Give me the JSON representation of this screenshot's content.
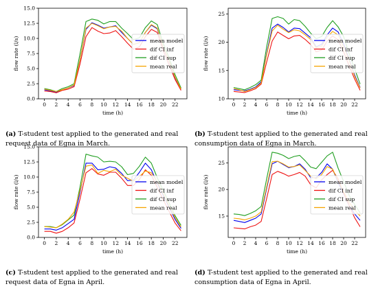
{
  "figure": {
    "captions": [
      {
        "tag": "(a)",
        "text": "T-student test applied to the generated and real request data of Egna in March."
      },
      {
        "tag": "(b)",
        "text": "T-student test applied to the generated and real consumption data of Egna in March."
      },
      {
        "tag": "(c)",
        "text": "T-student test applied to the generated and real request data of Egna in April."
      },
      {
        "tag": "(d)",
        "text": "T-student test applied to the generated and real consumption data of Egna in April."
      }
    ]
  },
  "colors": {
    "mean model": "#0000ee",
    "dif CI inf": "#ee1111",
    "dif CI sup": "#1f9e1f",
    "mean real": "#f5a300"
  },
  "chart_data": [
    {
      "type": "line",
      "xlabel": "time (h)",
      "ylabel": "flow rate (l/s)",
      "x": [
        0,
        1,
        2,
        3,
        4,
        5,
        6,
        7,
        8,
        9,
        10,
        11,
        12,
        13,
        14,
        15,
        16,
        17,
        18,
        19,
        20,
        21,
        22,
        23
      ],
      "xticks": [
        0,
        2,
        4,
        6,
        8,
        10,
        12,
        14,
        16,
        18,
        20,
        22
      ],
      "ylim": [
        0,
        15
      ],
      "yticks": [
        0,
        2.5,
        5.0,
        7.5,
        10.0,
        12.5,
        15.0
      ],
      "ytick_labels": [
        "0.0",
        "2.5",
        "5.0",
        "7.5",
        "10.0",
        "12.5",
        "15.0"
      ],
      "legend": "center-right",
      "series": [
        {
          "name": "mean model",
          "values": [
            1.5,
            1.3,
            1.1,
            1.5,
            1.8,
            2.2,
            6.5,
            11.5,
            12.6,
            12.2,
            11.7,
            11.9,
            12.1,
            11.0,
            10.0,
            9.0,
            9.3,
            11.0,
            12.2,
            11.6,
            8.5,
            6.2,
            3.5,
            1.6
          ]
        },
        {
          "name": "dif CI inf",
          "values": [
            1.3,
            1.2,
            1.0,
            1.4,
            1.6,
            2.0,
            5.8,
            10.3,
            11.8,
            11.2,
            10.8,
            10.9,
            11.3,
            10.3,
            9.2,
            8.2,
            8.6,
            10.3,
            11.5,
            11.0,
            8.0,
            5.6,
            3.2,
            1.4
          ]
        },
        {
          "name": "dif CI sup",
          "values": [
            1.7,
            1.5,
            1.2,
            1.7,
            2.0,
            2.5,
            7.5,
            12.8,
            13.2,
            13.0,
            12.4,
            12.8,
            12.8,
            11.7,
            10.8,
            9.8,
            10.1,
            11.8,
            12.9,
            12.3,
            9.2,
            6.8,
            4.0,
            1.8
          ]
        },
        {
          "name": "mean real",
          "values": [
            1.6,
            1.4,
            1.2,
            1.5,
            1.8,
            2.3,
            6.5,
            11.7,
            12.5,
            12.1,
            11.6,
            11.9,
            12.0,
            11.2,
            10.0,
            9.0,
            9.3,
            11.0,
            12.3,
            11.7,
            8.6,
            6.3,
            3.6,
            1.6
          ]
        }
      ]
    },
    {
      "type": "line",
      "xlabel": "time (h)",
      "ylabel": "flow rate (l/s)",
      "x": [
        0,
        1,
        2,
        3,
        4,
        5,
        6,
        7,
        8,
        9,
        10,
        11,
        12,
        13,
        14,
        15,
        16,
        17,
        18,
        19,
        20,
        21,
        22,
        23
      ],
      "xticks": [
        0,
        2,
        4,
        6,
        8,
        10,
        12,
        14,
        16,
        18,
        20,
        22
      ],
      "ylim": [
        10,
        26
      ],
      "yticks": [
        10,
        15,
        20,
        25
      ],
      "ytick_labels": [
        "10",
        "15",
        "20",
        "25"
      ],
      "legend": "center-right",
      "series": [
        {
          "name": "mean model",
          "values": [
            11.6,
            11.5,
            11.4,
            11.7,
            12.1,
            13.0,
            18.0,
            22.5,
            23.2,
            22.6,
            21.8,
            22.5,
            22.4,
            21.6,
            20.8,
            19.2,
            19.6,
            21.3,
            22.5,
            21.8,
            19.7,
            17.0,
            14.2,
            12.0
          ]
        },
        {
          "name": "dif CI inf",
          "values": [
            11.3,
            11.2,
            11.1,
            11.4,
            11.8,
            12.6,
            16.5,
            20.2,
            21.8,
            21.2,
            20.6,
            21.1,
            21.2,
            20.5,
            19.6,
            18.3,
            18.6,
            20.2,
            21.1,
            20.4,
            18.3,
            15.8,
            13.5,
            11.5
          ]
        },
        {
          "name": "dif CI sup",
          "values": [
            12.0,
            11.8,
            11.6,
            12.0,
            12.5,
            13.3,
            19.2,
            24.2,
            24.5,
            24.2,
            23.2,
            24.0,
            23.8,
            22.8,
            21.6,
            20.6,
            21.0,
            22.6,
            23.8,
            22.7,
            21.0,
            18.0,
            15.3,
            12.6
          ]
        },
        {
          "name": "mean real",
          "values": [
            11.8,
            11.6,
            11.3,
            11.6,
            12.0,
            12.8,
            17.8,
            22.0,
            23.0,
            22.3,
            21.7,
            22.2,
            22.0,
            21.3,
            20.5,
            19.0,
            19.3,
            20.9,
            21.9,
            21.3,
            19.2,
            16.8,
            14.0,
            11.9
          ]
        }
      ]
    },
    {
      "type": "line",
      "xlabel": "time (h)",
      "ylabel": "flow rate (l/s)",
      "x": [
        0,
        1,
        2,
        3,
        4,
        5,
        6,
        7,
        8,
        9,
        10,
        11,
        12,
        13,
        14,
        15,
        16,
        17,
        18,
        19,
        20,
        21,
        22,
        23
      ],
      "xticks": [
        0,
        2,
        4,
        6,
        8,
        10,
        12,
        14,
        16,
        18,
        20,
        22
      ],
      "ylim": [
        0,
        15
      ],
      "yticks": [
        0,
        2.5,
        5.0,
        7.5,
        10.0,
        12.5,
        15.0
      ],
      "ytick_labels": [
        "0.0",
        "2.5",
        "5.0",
        "7.5",
        "10.0",
        "12.5",
        "15.0"
      ],
      "legend": "center-right",
      "series": [
        {
          "name": "mean model",
          "values": [
            1.4,
            1.4,
            1.2,
            1.6,
            2.3,
            3.0,
            7.5,
            12.3,
            12.3,
            11.2,
            11.3,
            11.7,
            11.5,
            10.6,
            9.4,
            9.5,
            10.8,
            12.3,
            11.2,
            9.0,
            7.0,
            5.0,
            3.0,
            1.5
          ]
        },
        {
          "name": "dif CI inf",
          "values": [
            1.0,
            1.0,
            0.7,
            1.0,
            1.6,
            2.4,
            6.4,
            10.7,
            11.4,
            10.5,
            10.3,
            10.8,
            10.8,
            9.8,
            8.6,
            8.6,
            9.6,
            11.2,
            10.3,
            8.3,
            6.3,
            4.3,
            2.4,
            1.1
          ]
        },
        {
          "name": "dif CI sup",
          "values": [
            1.8,
            1.8,
            1.6,
            2.1,
            2.9,
            3.7,
            8.4,
            13.8,
            13.5,
            13.3,
            12.5,
            12.6,
            12.5,
            11.7,
            10.4,
            10.6,
            11.8,
            13.3,
            12.3,
            9.9,
            7.8,
            5.7,
            3.6,
            2.0
          ]
        },
        {
          "name": "mean real",
          "values": [
            1.8,
            1.7,
            1.6,
            2.2,
            3.0,
            4.2,
            7.8,
            11.8,
            12.0,
            10.6,
            11.1,
            10.9,
            11.3,
            10.3,
            9.8,
            9.3,
            10.1,
            11.0,
            10.7,
            9.2,
            7.2,
            5.2,
            3.3,
            1.7
          ]
        }
      ]
    },
    {
      "type": "line",
      "xlabel": "time (h)",
      "ylabel": "flow rate (l/s)",
      "x": [
        0,
        1,
        2,
        3,
        4,
        5,
        6,
        7,
        8,
        9,
        10,
        11,
        12,
        13,
        14,
        15,
        16,
        17,
        18,
        19,
        20,
        21,
        22,
        23
      ],
      "xticks": [
        0,
        2,
        4,
        6,
        8,
        10,
        12,
        14,
        16,
        18,
        20,
        22
      ],
      "ylim": [
        11,
        28
      ],
      "yticks": [
        15,
        20,
        25
      ],
      "ytick_labels": [
        "15",
        "20",
        "25"
      ],
      "legend": "center-right",
      "series": [
        {
          "name": "mean model",
          "values": [
            14.2,
            14.0,
            13.8,
            14.2,
            14.6,
            15.4,
            20.2,
            24.8,
            25.3,
            24.7,
            24.1,
            24.3,
            24.8,
            23.8,
            22.2,
            22.2,
            23.2,
            24.8,
            23.8,
            21.3,
            19.2,
            17.0,
            15.4,
            14.2
          ]
        },
        {
          "name": "dif CI inf",
          "values": [
            12.8,
            12.7,
            12.6,
            13.0,
            13.3,
            14.0,
            18.3,
            22.8,
            23.4,
            23.0,
            22.5,
            22.8,
            23.2,
            22.5,
            20.9,
            20.3,
            21.8,
            22.8,
            23.6,
            22.0,
            19.3,
            17.0,
            14.7,
            13.0
          ]
        },
        {
          "name": "dif CI sup",
          "values": [
            15.4,
            15.3,
            15.1,
            15.5,
            16.0,
            16.8,
            22.0,
            27.0,
            26.8,
            26.4,
            25.8,
            26.2,
            26.4,
            25.4,
            24.2,
            23.9,
            25.1,
            26.3,
            27.0,
            24.0,
            21.5,
            18.9,
            17.2,
            15.6
          ]
        },
        {
          "name": "mean real",
          "values": [
            14.6,
            14.5,
            14.3,
            14.6,
            15.0,
            15.8,
            20.5,
            25.2,
            25.3,
            24.8,
            24.2,
            24.3,
            24.6,
            23.6,
            22.5,
            22.0,
            22.8,
            24.3,
            23.8,
            21.6,
            19.6,
            17.6,
            16.2,
            15.0
          ]
        }
      ]
    }
  ]
}
